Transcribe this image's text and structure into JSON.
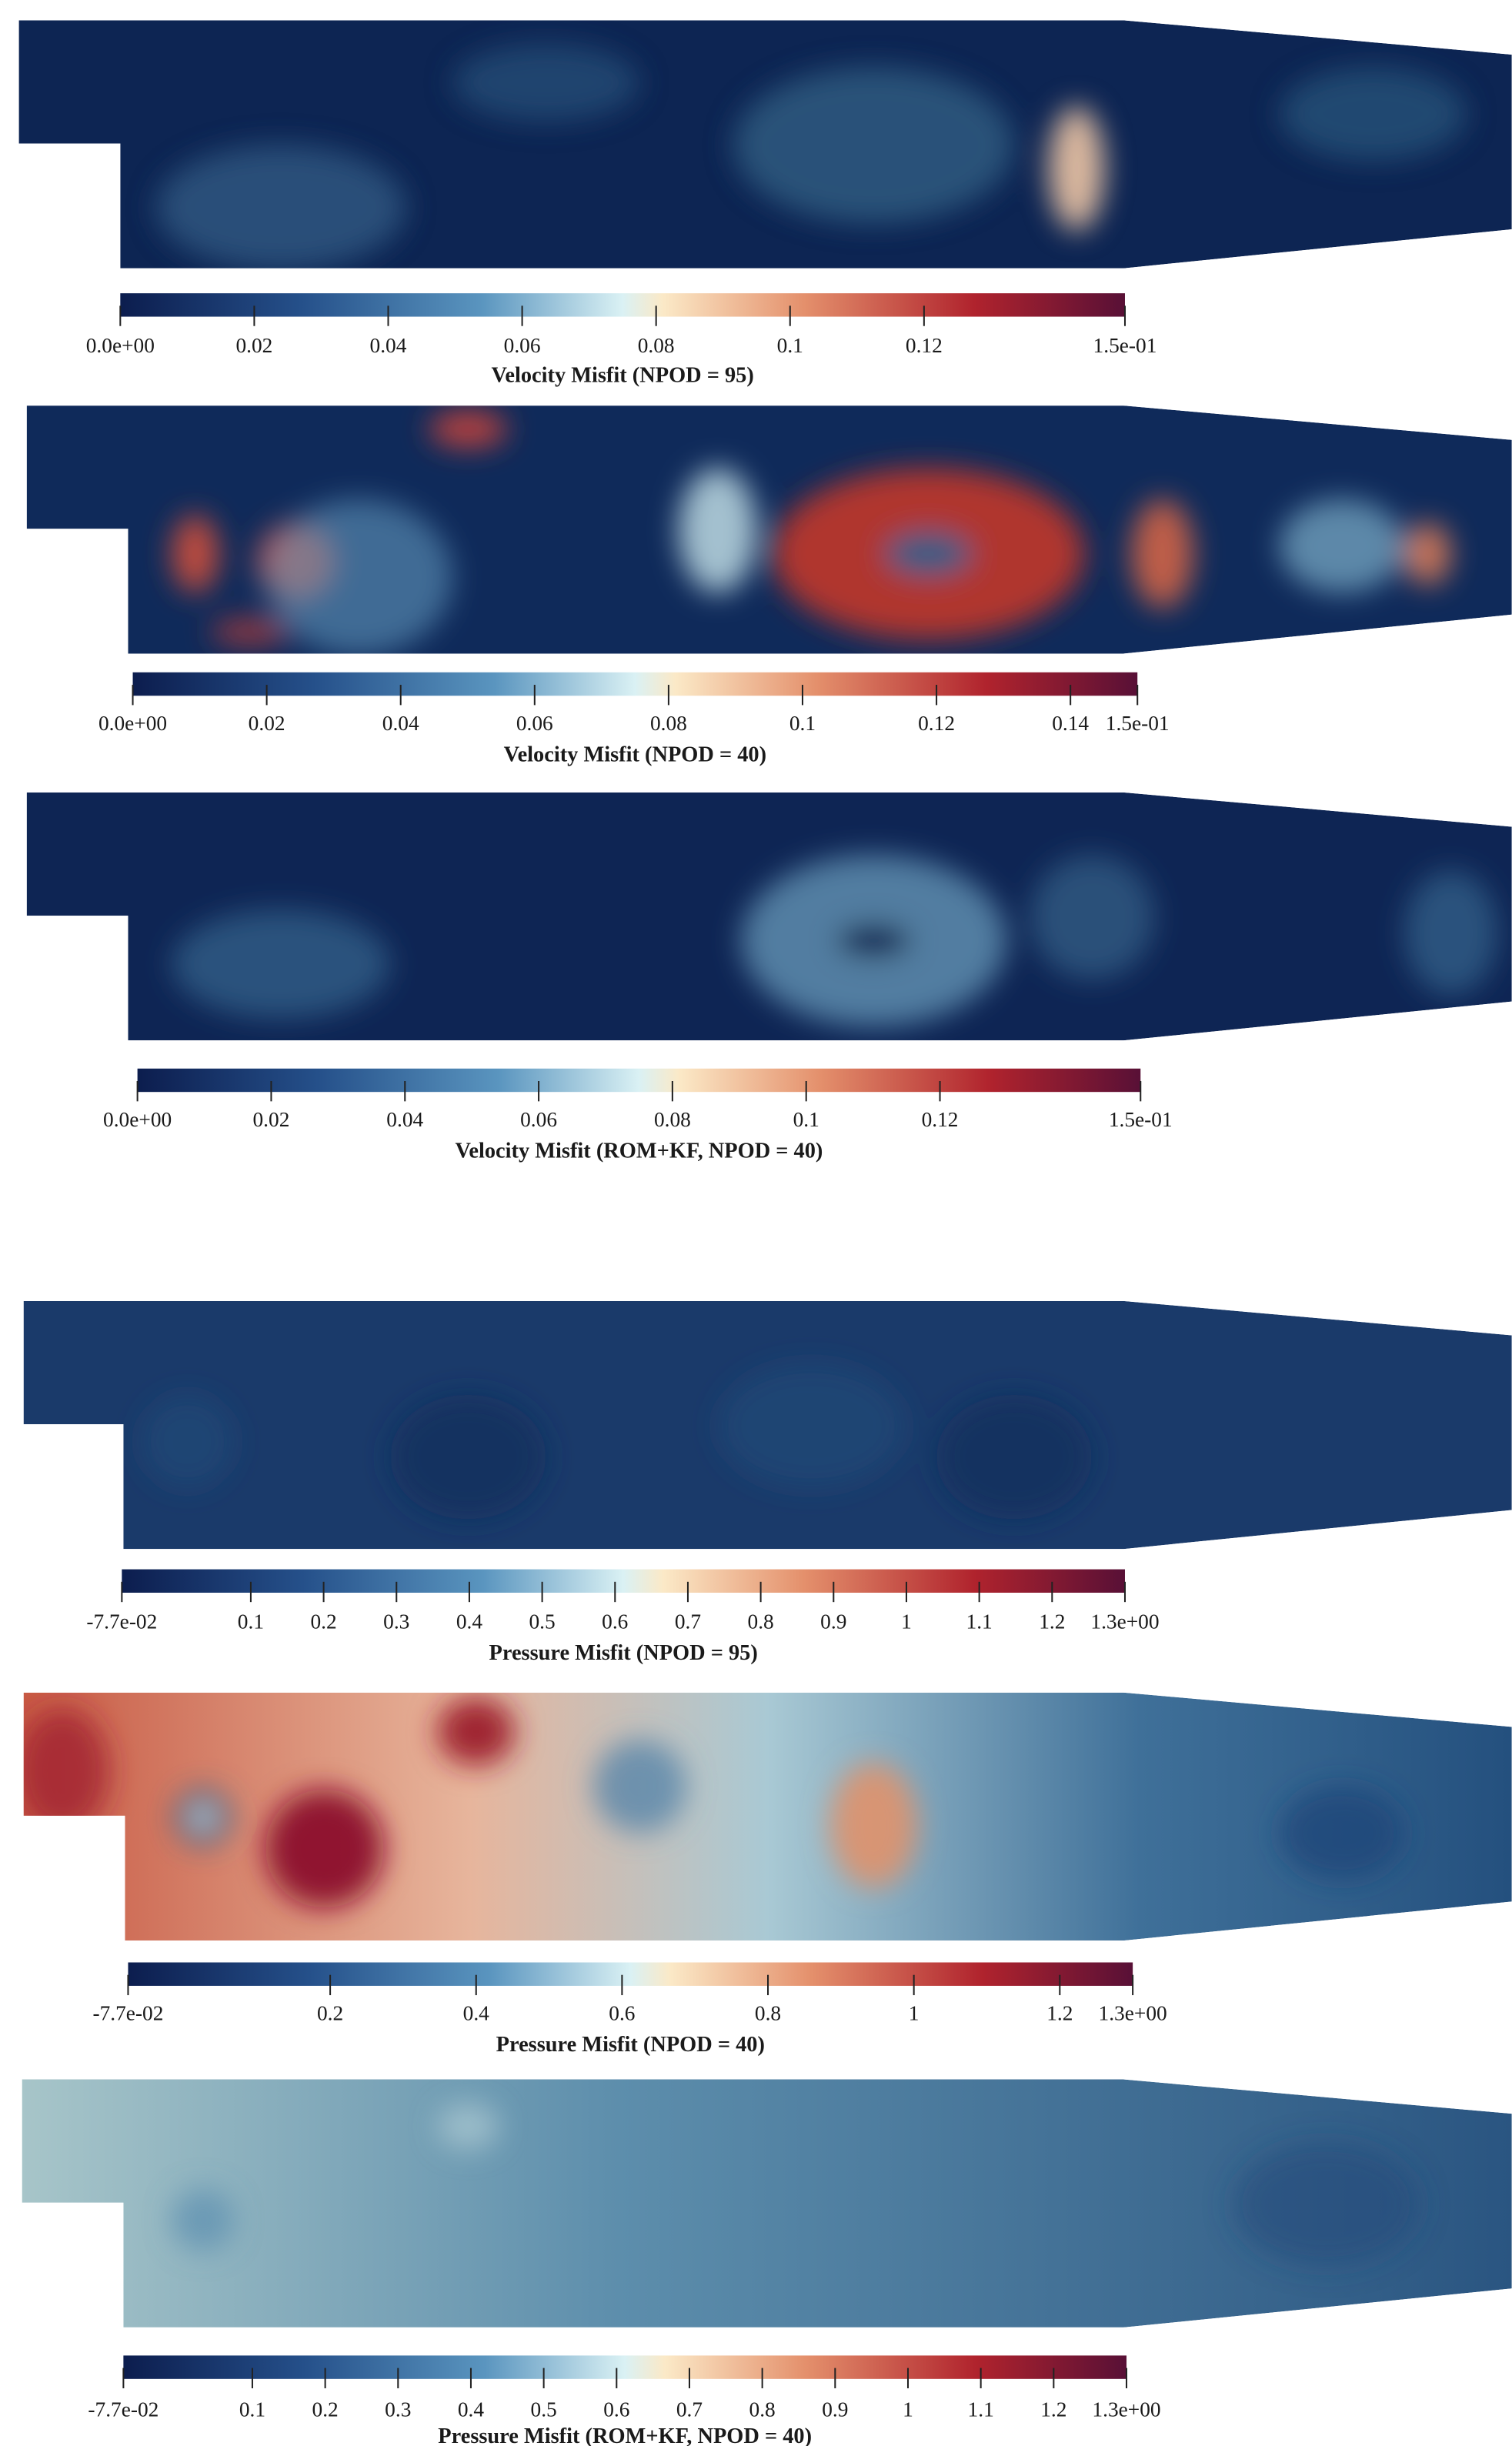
{
  "panels": [
    {
      "title": "Velocity Misfit (NPOD = 95)",
      "range": [
        0,
        0.15
      ],
      "ticks": [
        {
          "value": 0,
          "label": "0.0e+00"
        },
        0.02,
        0.04,
        0.06,
        0.08,
        0.1,
        0.12,
        {
          "value": 0.15,
          "label": "1.5e-01"
        }
      ]
    },
    {
      "title": "Velocity Misfit (NPOD = 40)",
      "range": [
        0,
        0.15
      ],
      "ticks": [
        {
          "value": 0,
          "label": "0.0e+00"
        },
        0.02,
        0.04,
        0.06,
        0.08,
        0.1,
        0.12,
        0.14,
        {
          "value": 0.15,
          "label": "1.5e-01"
        }
      ]
    },
    {
      "title": "Velocity Misfit (ROM+KF, NPOD = 40)",
      "range": [
        0,
        0.15
      ],
      "ticks": [
        {
          "value": 0,
          "label": "0.0e+00"
        },
        0.02,
        0.04,
        0.06,
        0.08,
        0.1,
        0.12,
        {
          "value": 0.15,
          "label": "1.5e-01"
        }
      ]
    },
    {
      "title": "Pressure Misfit (NPOD = 95)",
      "range": [
        -0.077,
        1.3
      ],
      "ticks": [
        {
          "value": -0.077,
          "label": "-7.7e-02"
        },
        0.1,
        0.2,
        0.3,
        0.4,
        0.5,
        0.6,
        0.7,
        0.8,
        0.9,
        1,
        1.1,
        1.2,
        {
          "value": 1.3,
          "label": "1.3e+00"
        }
      ]
    },
    {
      "title": "Pressure Misfit (NPOD = 40)",
      "range": [
        -0.077,
        1.3
      ],
      "ticks": [
        {
          "value": -0.077,
          "label": "-7.7e-02"
        },
        0.2,
        0.4,
        0.6,
        0.8,
        1,
        1.2,
        {
          "value": 1.3,
          "label": "1.3e+00"
        }
      ]
    },
    {
      "title": "Pressure Misfit (ROM+KF, NPOD = 40)",
      "range": [
        -0.077,
        1.3
      ],
      "ticks": [
        {
          "value": -0.077,
          "label": "-7.7e-02"
        },
        0.1,
        0.2,
        0.3,
        0.4,
        0.5,
        0.6,
        0.7,
        0.8,
        0.9,
        1,
        1.1,
        1.2,
        {
          "value": 1.3,
          "label": "1.3e+00"
        }
      ]
    }
  ]
}
